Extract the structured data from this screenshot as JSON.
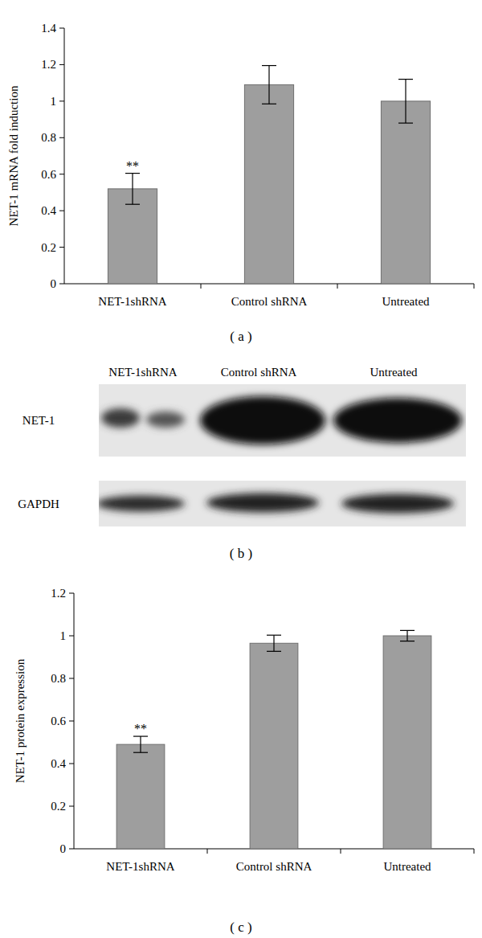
{
  "chart_data": [
    {
      "type": "bar",
      "title": "( a )",
      "y_label": "NET-1 mRNA fold induction",
      "categories": [
        "NET-1shRNA",
        "Control shRNA",
        "Untreated"
      ],
      "values": [
        0.52,
        1.09,
        1.0
      ],
      "errors": [
        0.085,
        0.105,
        0.12
      ],
      "significance": [
        "**",
        null,
        null
      ],
      "color": "#9e9e9e",
      "ylim": [
        0,
        1.4
      ],
      "yticks": [
        0,
        0.2,
        0.4,
        0.6,
        0.8,
        1,
        1.2,
        1.4
      ],
      "grid": false
    },
    {
      "type": "blot",
      "title": "( b )",
      "categories": [
        "NET-1shRNA",
        "Control shRNA",
        "Untreated"
      ],
      "rows": [
        "NET-1",
        "GAPDH"
      ]
    },
    {
      "type": "bar",
      "title": "( c )",
      "y_label": "NET-1 protein expression",
      "categories": [
        "NET-1shRNA",
        "Control shRNA",
        "Untreated"
      ],
      "values": [
        0.49,
        0.965,
        1.0
      ],
      "errors": [
        0.038,
        0.038,
        0.025
      ],
      "significance": [
        "**",
        null,
        null
      ],
      "color": "#9e9e9e",
      "ylim": [
        0,
        1.2
      ],
      "yticks": [
        0,
        0.2,
        0.4,
        0.6,
        0.8,
        1,
        1.2
      ],
      "grid": false
    }
  ]
}
